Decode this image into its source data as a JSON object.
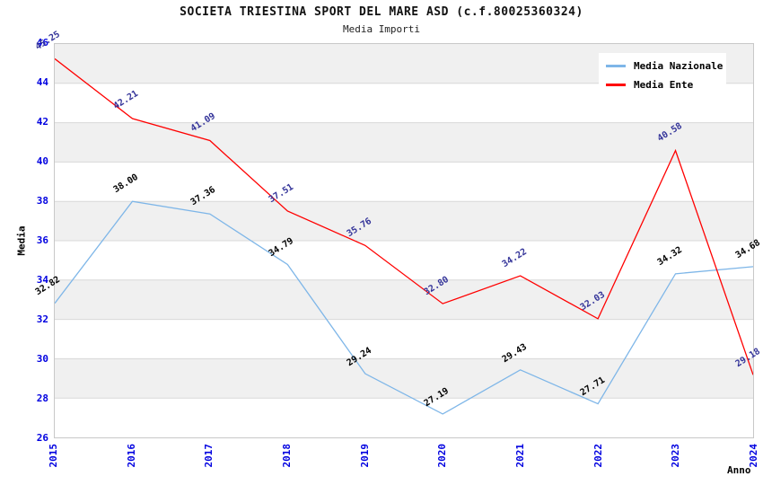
{
  "chart_data": {
    "type": "line",
    "title": "SOCIETA TRIESTINA SPORT DEL MARE ASD (c.f.80025360324)",
    "subtitle": "Media Importi",
    "xlabel": "Anno",
    "ylabel": "Media",
    "categories": [
      "2015",
      "2016",
      "2017",
      "2018",
      "2019",
      "2020",
      "2021",
      "2022",
      "2023",
      "2024"
    ],
    "ylim": [
      26,
      46
    ],
    "ytick_step": 2,
    "grid": "horizontal gridlines with alternating background bands",
    "legend_position": "top-right inside plot",
    "series": [
      {
        "name": "Media Nazionale",
        "color": "#7EB6E8",
        "label_color": "#000000",
        "values": [
          32.82,
          38.0,
          37.36,
          34.79,
          29.24,
          27.19,
          29.43,
          27.71,
          34.32,
          34.68
        ]
      },
      {
        "name": "Media Ente",
        "color": "#FF0000",
        "label_color": "#333399",
        "values": [
          45.25,
          42.21,
          41.09,
          37.51,
          35.76,
          32.8,
          34.22,
          32.03,
          40.58,
          29.18
        ]
      }
    ],
    "value_label_decimals": 2,
    "style_colors": {
      "tick_label": "#0000E0",
      "band_gray": "#F0F0F0",
      "band_white": "#FFFFFF",
      "gridline": "#D8D8D8",
      "plot_border": "#C8C8C8",
      "background": "#FFFFFF"
    }
  }
}
